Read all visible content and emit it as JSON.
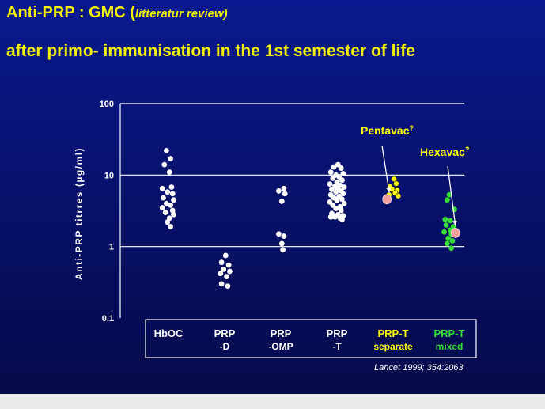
{
  "slide": {
    "title_main": "Anti-PRP : GMC (",
    "title_sub": "litteratur review)",
    "subtitle": "after primo- immunisation  in the  1st semester of life"
  },
  "chart_data": {
    "type": "scatter",
    "ylabel": "Anti-PRP titrres (µg/ml)",
    "yscale": "log",
    "ylim": [
      0.1,
      100
    ],
    "yticks": [
      {
        "value": 100,
        "label": "100"
      },
      {
        "value": 10,
        "label": "10"
      },
      {
        "value": 1,
        "label": "1"
      },
      {
        "value": 0.1,
        "label": "0.1"
      }
    ],
    "grid": "horizontal at 100, 10 and 1",
    "categories": [
      {
        "line1": "HbOC",
        "line2": "",
        "color": "#ffffff"
      },
      {
        "line1": "PRP",
        "line2": "-D",
        "color": "#ffffff"
      },
      {
        "line1": "PRP",
        "line2": "-OMP",
        "color": "#ffffff"
      },
      {
        "line1": "PRP",
        "line2": "-T",
        "color": "#ffffff"
      },
      {
        "line1": "PRP-T",
        "line2": "separate",
        "color": "#ffff00"
      },
      {
        "line1": "PRP-T",
        "line2": "mixed",
        "color": "#33dd33"
      }
    ],
    "series": [
      {
        "category": 0,
        "color": "#ffffff",
        "points": [
          [
            -0.1,
            22
          ],
          [
            0.1,
            17
          ],
          [
            -0.2,
            14
          ],
          [
            0.05,
            11
          ],
          [
            -0.3,
            6.5
          ],
          [
            0.15,
            6.8
          ],
          [
            -0.05,
            5.8
          ],
          [
            0.2,
            5.5
          ],
          [
            -0.25,
            4.8
          ],
          [
            0.25,
            4.5
          ],
          [
            -0.1,
            4
          ],
          [
            0.1,
            3.8
          ],
          [
            -0.3,
            3.5
          ],
          [
            0.2,
            3.2
          ],
          [
            -0.15,
            3
          ],
          [
            0.25,
            2.8
          ],
          [
            0.05,
            2.5
          ],
          [
            -0.05,
            2.2
          ],
          [
            0.1,
            1.9
          ]
        ]
      },
      {
        "category": 1,
        "color": "#ffffff",
        "points": [
          [
            0.05,
            0.75
          ],
          [
            -0.15,
            0.6
          ],
          [
            0.2,
            0.55
          ],
          [
            -0.05,
            0.48
          ],
          [
            0.25,
            0.45
          ],
          [
            -0.2,
            0.42
          ],
          [
            0.1,
            0.38
          ],
          [
            -0.15,
            0.3
          ],
          [
            0.15,
            0.28
          ]
        ]
      },
      {
        "category": 2,
        "color": "#ffffff",
        "points": [
          [
            0.15,
            6.5
          ],
          [
            -0.1,
            6
          ],
          [
            0.2,
            5.5
          ],
          [
            0.05,
            4.3
          ],
          [
            -0.1,
            1.5
          ],
          [
            0.15,
            1.4
          ],
          [
            0.05,
            1.1
          ],
          [
            0.1,
            0.9
          ]
        ]
      },
      {
        "category": 3,
        "color": "#ffffff",
        "points": [
          [
            0.05,
            14
          ],
          [
            -0.15,
            13
          ],
          [
            0.2,
            12.5
          ],
          [
            -0.3,
            11
          ],
          [
            0.3,
            10.5
          ],
          [
            -0.05,
            10
          ],
          [
            0.1,
            9.5
          ],
          [
            -0.2,
            9
          ],
          [
            0.25,
            8.5
          ],
          [
            0,
            8
          ],
          [
            -0.35,
            7.5
          ],
          [
            0.15,
            7.2
          ],
          [
            -0.1,
            7
          ],
          [
            0.35,
            6.8
          ],
          [
            0.05,
            6.5
          ],
          [
            -0.25,
            6.3
          ],
          [
            0.2,
            6
          ],
          [
            -0.05,
            5.8
          ],
          [
            0.3,
            5.5
          ],
          [
            -0.3,
            5.3
          ],
          [
            0.1,
            5
          ],
          [
            -0.15,
            4.8
          ],
          [
            0.25,
            4.6
          ],
          [
            0,
            4.4
          ],
          [
            -0.35,
            4.2
          ],
          [
            0.35,
            4
          ],
          [
            -0.2,
            3.8
          ],
          [
            0.15,
            3.6
          ],
          [
            -0.05,
            3.4
          ],
          [
            0.2,
            3.2
          ],
          [
            -0.25,
            2.9
          ],
          [
            0.05,
            2.8
          ],
          [
            0.3,
            2.7
          ],
          [
            -0.1,
            2.6
          ],
          [
            0.15,
            2.5
          ],
          [
            -0.3,
            2.6
          ],
          [
            0.25,
            2.4
          ]
        ]
      },
      {
        "category": 4,
        "color": "#ffff00",
        "points": [
          [
            0.05,
            8.8
          ],
          [
            0.15,
            7.6
          ],
          [
            -0.15,
            6.9
          ],
          [
            -0.05,
            6.3
          ],
          [
            0.2,
            6.1
          ],
          [
            0.1,
            5.6
          ],
          [
            -0.2,
            5.3
          ],
          [
            0.25,
            5.1
          ]
        ]
      },
      {
        "category": 5,
        "color": "#33dd33",
        "points": [
          [
            0,
            5.3
          ],
          [
            -0.1,
            4.5
          ],
          [
            0.25,
            3.3
          ],
          [
            -0.2,
            2.4
          ],
          [
            0.05,
            2.3
          ],
          [
            -0.15,
            2
          ],
          [
            0.2,
            1.9
          ],
          [
            0.05,
            1.7
          ],
          [
            -0.25,
            1.6
          ],
          [
            0.1,
            1.5
          ],
          [
            -0.05,
            1.3
          ],
          [
            0.15,
            1.2
          ],
          [
            -0.1,
            1.1
          ],
          [
            0.1,
            0.95
          ]
        ]
      }
    ],
    "annotations": [
      {
        "label": "Pentavac",
        "suffix": "?",
        "category": 4,
        "offset": -0.3,
        "value": 4.6,
        "marker_color": "#f4a0a0",
        "text_color": "#ffff00"
      },
      {
        "label": "Hexavac",
        "suffix": "?",
        "category": 5,
        "offset": 0.3,
        "value": 1.55,
        "marker_color": "#f4a0a0",
        "text_color": "#ffff00"
      }
    ],
    "source": "Lancet 1999; 354:2063"
  }
}
